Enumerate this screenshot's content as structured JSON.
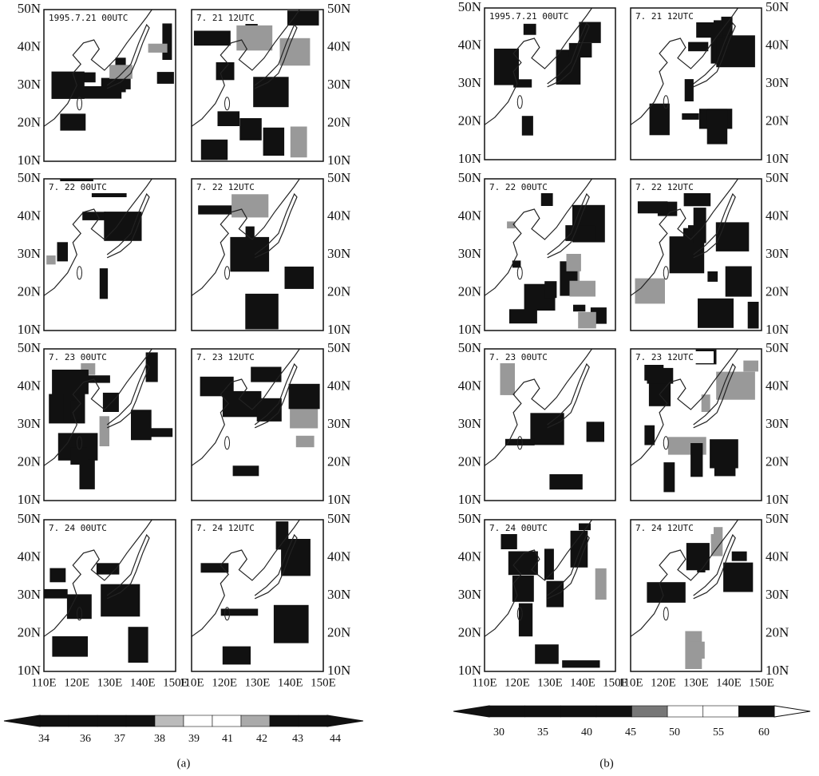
{
  "figures": [
    {
      "caption": "(a)",
      "panels": [
        "1995.7.21 00UTC",
        "7. 21 12UTC",
        "7. 22 00UTC",
        "7. 22 12UTC",
        "7. 23 00UTC",
        "7. 23 12UTC",
        "7. 24 00UTC",
        "7. 24 12UTC"
      ],
      "lat_labels": [
        "50N",
        "40N",
        "30N",
        "20N",
        "10N"
      ],
      "lon_labels": [
        "110E",
        "120E",
        "130E",
        "140E",
        "150E"
      ],
      "colorbar_labels": [
        "34",
        "36",
        "37",
        "38",
        "39",
        "41",
        "42",
        "43",
        "44"
      ]
    },
    {
      "caption": "(b)",
      "panels": [
        "1995.7.21 00UTC",
        "7. 21 12UTC",
        "7. 22 00UTC",
        "7. 22 12UTC",
        "7. 23 00UTC",
        "7. 23 12UTC",
        "7. 24 00UTC",
        "7. 24 12UTC"
      ],
      "lat_labels": [
        "50N",
        "40N",
        "30N",
        "20N",
        "10N"
      ],
      "lon_labels": [
        "110E",
        "120E",
        "130E",
        "140E",
        "150E"
      ],
      "colorbar_labels": [
        "30",
        "35",
        "40",
        "45",
        "50",
        "55",
        "60"
      ]
    }
  ]
}
